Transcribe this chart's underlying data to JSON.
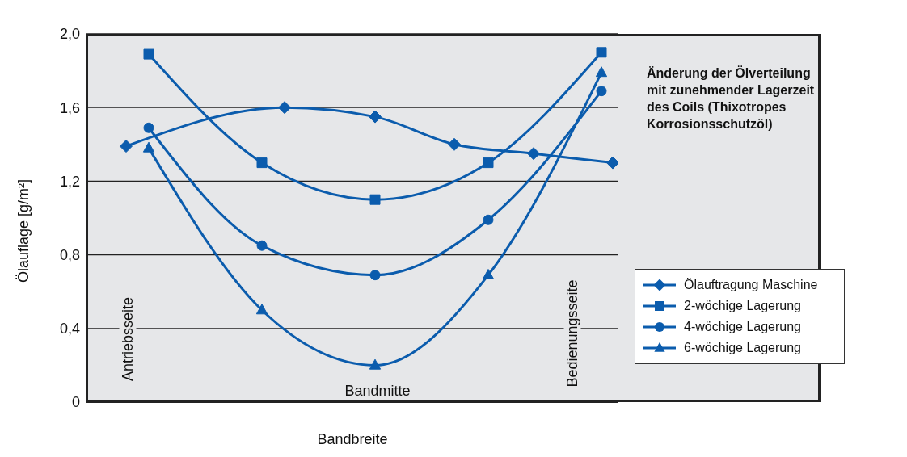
{
  "chart_data": {
    "type": "line",
    "xlabel": "Bandbreite",
    "ylabel": "Ölauflage [g/m²]",
    "categories": [
      null,
      null,
      null,
      null,
      null,
      null,
      null,
      null,
      null,
      null,
      null,
      null,
      null,
      null,
      null,
      null,
      null,
      null,
      null,
      null,
      null,
      null,
      null,
      null,
      null,
      null,
      null,
      null,
      null,
      null,
      null,
      null,
      null,
      null,
      null,
      null,
      null,
      null,
      null,
      null,
      null,
      null,
      null,
      null,
      null,
      null,
      null
    ],
    "ylim": [
      0,
      2
    ],
    "yticks": [
      0,
      {
        "value": 0.4,
        "label": "0,4"
      },
      {
        "value": 0.8,
        "label": "0,8"
      },
      {
        "value": 1.2,
        "label": "1,2"
      },
      {
        "value": 1.6,
        "label": "1,6"
      },
      {
        "value": 2,
        "label": "2,0"
      }
    ],
    "tick_labels": "y",
    "grid": "y",
    "legend": "right",
    "annotations": [
      "Änderung der Ölverteilung mit zunehmender Lagerzeit des Coils (Thixotropes Korrosionsschutzöl)",
      "Antriebsseite",
      "Bandmitte",
      "Bedienungsseite"
    ],
    "series": [
      {
        "name": "Ölauftragung Maschine",
        "color": "#0b5cad",
        "marker": "diamond",
        "values": [
          null,
          null,
          null,
          1.39,
          null,
          null,
          null,
          null,
          null,
          null,
          null,
          null,
          null,
          null,
          null,
          null,
          null,
          1.6,
          null,
          null,
          null,
          null,
          null,
          null,
          null,
          1.55,
          null,
          null,
          null,
          null,
          null,
          null,
          1.4,
          null,
          null,
          null,
          null,
          null,
          null,
          1.35,
          null,
          null,
          null,
          null,
          null,
          null,
          1.3
        ]
      },
      {
        "name": "2-wöchige Lagerung",
        "color": "#0b5cad",
        "marker": "square",
        "values": [
          null,
          null,
          null,
          null,
          null,
          1.89,
          null,
          null,
          null,
          null,
          null,
          null,
          null,
          null,
          null,
          1.3,
          null,
          null,
          null,
          null,
          null,
          null,
          null,
          null,
          null,
          1.1,
          null,
          null,
          null,
          null,
          null,
          null,
          null,
          null,
          null,
          1.3,
          null,
          null,
          null,
          null,
          null,
          null,
          null,
          null,
          null,
          1.9,
          null
        ]
      },
      {
        "name": "4-wöchige Lagerung",
        "color": "#0b5cad",
        "marker": "circle",
        "values": [
          null,
          null,
          null,
          null,
          null,
          1.49,
          null,
          null,
          null,
          null,
          null,
          null,
          null,
          null,
          null,
          0.85,
          null,
          null,
          null,
          null,
          null,
          null,
          null,
          null,
          null,
          0.69,
          null,
          null,
          null,
          null,
          null,
          null,
          null,
          null,
          null,
          0.99,
          null,
          null,
          null,
          null,
          null,
          null,
          null,
          null,
          null,
          1.69,
          null
        ]
      },
      {
        "name": "6-wöchige Lagerung",
        "color": "#0b5cad",
        "marker": "triangle",
        "values": [
          null,
          null,
          null,
          null,
          null,
          1.38,
          null,
          null,
          null,
          null,
          null,
          null,
          null,
          null,
          null,
          0.5,
          null,
          null,
          null,
          null,
          null,
          null,
          null,
          null,
          null,
          0.2,
          null,
          null,
          null,
          null,
          null,
          null,
          null,
          null,
          null,
          0.69,
          null,
          null,
          null,
          null,
          null,
          null,
          null,
          null,
          null,
          1.79,
          null
        ]
      }
    ]
  }
}
